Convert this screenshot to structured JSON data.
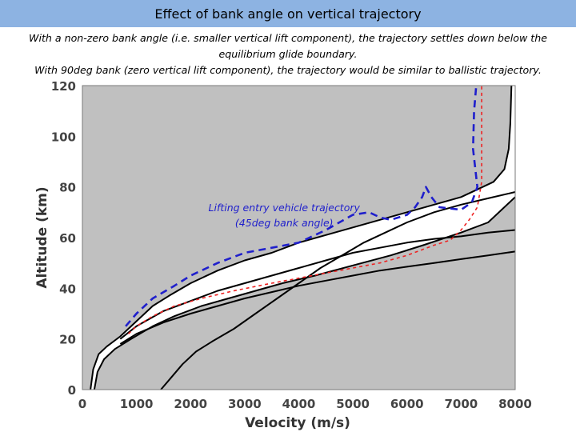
{
  "slide": {
    "title": "Effect of bank angle on vertical trajectory",
    "caption_lines": [
      "With a non-zero bank angle (i.e. smaller vertical lift component), the trajectory settles down below the",
      "equilibrium glide boundary.",
      "With 90deg bank (zero vertical lift component), the trajectory would be similar to ballistic trajectory."
    ]
  },
  "chart_data": {
    "type": "line",
    "title": "",
    "xlabel": "Velocity (m/s)",
    "ylabel": "Altitude (km)",
    "xlim": [
      0,
      8000
    ],
    "ylim": [
      0,
      120
    ],
    "xticks": [
      "0",
      "1000",
      "2000",
      "3000",
      "4000",
      "5000",
      "6000",
      "7000",
      "8000"
    ],
    "yticks": [
      "0",
      "20",
      "40",
      "60",
      "80",
      "100",
      "120"
    ],
    "grid": false,
    "annotation": {
      "lines": [
        "Lifting entry vehicle trajectory",
        "(45deg bank angle)"
      ],
      "x": 5800,
      "y": 83,
      "color": "#1f1fcc"
    },
    "colors": {
      "plot_background": "#c0c0c0",
      "corridor_fill": "#ffffff",
      "boundary": "#000000",
      "trajectory_blue": "#1f1fcc",
      "trajectory_red": "#ee2222"
    },
    "series": [
      {
        "style": "solid-black",
        "points": [
          [
            150,
            0
          ],
          [
            200,
            8
          ],
          [
            300,
            14
          ],
          [
            450,
            17
          ],
          [
            700,
            21
          ],
          [
            1000,
            27
          ],
          [
            1300,
            33
          ],
          [
            1600,
            37
          ],
          [
            2000,
            42
          ],
          [
            2500,
            47
          ],
          [
            3000,
            51
          ],
          [
            3500,
            54
          ],
          [
            4000,
            58
          ],
          [
            4500,
            61
          ],
          [
            5000,
            64
          ],
          [
            5500,
            67
          ],
          [
            6000,
            70
          ],
          [
            6500,
            73
          ],
          [
            7000,
            76
          ],
          [
            7300,
            79
          ],
          [
            7600,
            82
          ],
          [
            7800,
            87
          ],
          [
            7880,
            95
          ],
          [
            7910,
            105
          ],
          [
            7930,
            120
          ]
        ]
      },
      {
        "style": "solid-black",
        "points": [
          [
            220,
            0
          ],
          [
            280,
            7
          ],
          [
            400,
            12
          ],
          [
            600,
            16
          ],
          [
            900,
            20
          ],
          [
            1300,
            25
          ],
          [
            1700,
            29
          ],
          [
            2200,
            33
          ],
          [
            2700,
            36
          ],
          [
            3200,
            39
          ],
          [
            3700,
            42
          ],
          [
            4300,
            45
          ],
          [
            5000,
            49
          ],
          [
            5700,
            53
          ],
          [
            6300,
            57
          ],
          [
            7000,
            62
          ],
          [
            7500,
            66
          ],
          [
            8000,
            76
          ]
        ]
      },
      {
        "style": "solid-black",
        "points": [
          [
            700,
            20
          ],
          [
            1000,
            25
          ],
          [
            1500,
            31
          ],
          [
            2000,
            35
          ],
          [
            2500,
            39
          ],
          [
            3000,
            42
          ],
          [
            3500,
            45
          ],
          [
            4000,
            48
          ],
          [
            4500,
            51
          ],
          [
            5000,
            54
          ],
          [
            5500,
            56
          ],
          [
            6000,
            58
          ],
          [
            6500,
            59.5
          ],
          [
            7000,
            60.5
          ],
          [
            7500,
            62
          ],
          [
            8000,
            63
          ]
        ]
      },
      {
        "style": "solid-black",
        "points": [
          [
            700,
            18
          ],
          [
            1000,
            22
          ],
          [
            1500,
            26.5
          ],
          [
            2000,
            30
          ],
          [
            2500,
            33
          ],
          [
            3000,
            36
          ],
          [
            3500,
            38.5
          ],
          [
            4000,
            41
          ],
          [
            4500,
            43
          ],
          [
            5000,
            45
          ],
          [
            5500,
            47
          ],
          [
            6000,
            48.5
          ],
          [
            6500,
            50
          ],
          [
            7000,
            51.5
          ],
          [
            7500,
            53
          ],
          [
            8000,
            54.5
          ]
        ]
      },
      {
        "style": "solid-black",
        "points": [
          [
            1450,
            0
          ],
          [
            1650,
            5
          ],
          [
            1850,
            10
          ],
          [
            2100,
            15
          ],
          [
            2400,
            19
          ],
          [
            2800,
            24
          ],
          [
            3200,
            30
          ],
          [
            3600,
            36
          ],
          [
            4000,
            42
          ],
          [
            4400,
            48
          ],
          [
            4800,
            53
          ],
          [
            5200,
            58
          ],
          [
            5600,
            62
          ],
          [
            6000,
            66
          ],
          [
            6500,
            70
          ],
          [
            7000,
            73
          ],
          [
            7500,
            75.5
          ],
          [
            8000,
            78
          ]
        ]
      },
      {
        "style": "dashed-blue",
        "points": [
          [
            800,
            25
          ],
          [
            1000,
            30
          ],
          [
            1300,
            36
          ],
          [
            1700,
            41
          ],
          [
            2000,
            45
          ],
          [
            2500,
            50
          ],
          [
            3000,
            54
          ],
          [
            3500,
            56
          ],
          [
            4000,
            58
          ],
          [
            4500,
            63
          ],
          [
            5000,
            69
          ],
          [
            5300,
            70
          ],
          [
            5500,
            68
          ],
          [
            5700,
            67
          ],
          [
            6000,
            69
          ],
          [
            6150,
            72
          ],
          [
            6280,
            76
          ],
          [
            6350,
            80
          ],
          [
            6450,
            76
          ],
          [
            6600,
            72
          ],
          [
            7000,
            71
          ],
          [
            7200,
            74
          ],
          [
            7300,
            80
          ],
          [
            7220,
            95
          ],
          [
            7240,
            110
          ],
          [
            7280,
            120
          ]
        ]
      },
      {
        "style": "dashed-red",
        "points": [
          [
            850,
            22
          ],
          [
            1000,
            25
          ],
          [
            1300,
            29
          ],
          [
            1700,
            33
          ],
          [
            2200,
            36
          ],
          [
            2800,
            39
          ],
          [
            3500,
            42
          ],
          [
            4000,
            44
          ],
          [
            4500,
            46
          ],
          [
            5000,
            48
          ],
          [
            5500,
            50
          ],
          [
            6000,
            53
          ],
          [
            6500,
            57
          ],
          [
            6800,
            59
          ],
          [
            7000,
            63
          ],
          [
            7150,
            67
          ],
          [
            7300,
            72
          ],
          [
            7380,
            82
          ],
          [
            7380,
            100
          ],
          [
            7380,
            120
          ]
        ]
      }
    ]
  }
}
